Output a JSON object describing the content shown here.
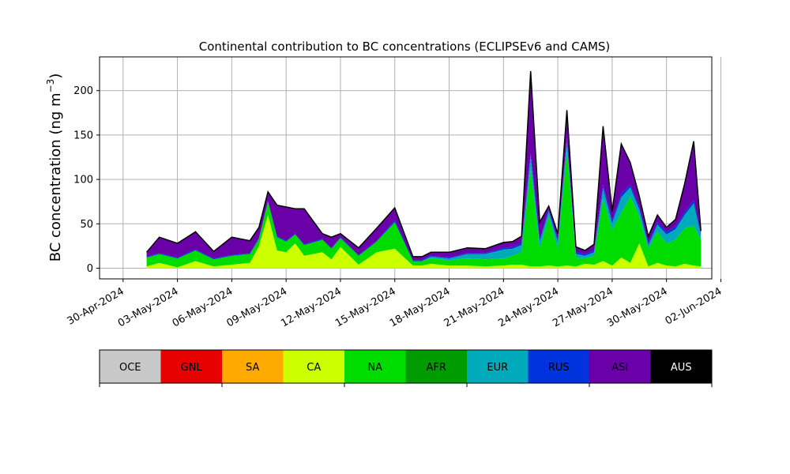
{
  "chart_data": {
    "type": "area",
    "stacked": true,
    "title": "Continental contribution to BC concentrations (ECLIPSEv6 and CAMS)",
    "ylabel": "BC concentration (ng m",
    "ylabel_unit_superscript": "−3",
    "ylabel_unit_close": ")",
    "xlabel": "",
    "ylim": [
      -12,
      238
    ],
    "xlim_days": [
      -1.3,
      32.5
    ],
    "grid": true,
    "yticks": [
      0,
      50,
      100,
      150,
      200
    ],
    "xticks": [
      "30-Apr-2024",
      "03-May-2024",
      "06-May-2024",
      "09-May-2024",
      "12-May-2024",
      "15-May-2024",
      "18-May-2024",
      "21-May-2024",
      "24-May-2024",
      "27-May-2024",
      "30-May-2024",
      "02-Jun-2024"
    ],
    "series_order": [
      "OCE",
      "GNL",
      "SA",
      "CA",
      "NA",
      "AFR",
      "EUR",
      "RUS",
      "ASI",
      "AUS"
    ],
    "colors": {
      "OCE": "#c8c8c8",
      "GNL": "#e60000",
      "SA": "#ffaa00",
      "CA": "#ccff00",
      "NA": "#00dc00",
      "AFR": "#009b00",
      "EUR": "#00aabb",
      "RUS": "#0033dd",
      "ASI": "#6a00a8",
      "AUS": "#000000"
    },
    "legend": [
      {
        "name": "OCE",
        "color": "#c8c8c8",
        "text_color": "#000000"
      },
      {
        "name": "GNL",
        "color": "#e60000",
        "text_color": "#000000"
      },
      {
        "name": "SA",
        "color": "#ffaa00",
        "text_color": "#000000"
      },
      {
        "name": "CA",
        "color": "#ccff00",
        "text_color": "#000000"
      },
      {
        "name": "NA",
        "color": "#00dc00",
        "text_color": "#000000"
      },
      {
        "name": "AFR",
        "color": "#009b00",
        "text_color": "#000000"
      },
      {
        "name": "EUR",
        "color": "#00aabb",
        "text_color": "#000000"
      },
      {
        "name": "RUS",
        "color": "#0033dd",
        "text_color": "#000000"
      },
      {
        "name": "ASI",
        "color": "#6a00a8",
        "text_color": "#000000"
      },
      {
        "name": "AUS",
        "color": "#000000",
        "text_color": "#ffffff"
      }
    ],
    "series": [
      {
        "name": "CA",
        "x": [
          1.3,
          2,
          3,
          4,
          5,
          6,
          7,
          7.5,
          8,
          8.5,
          9,
          9.5,
          10,
          11,
          11.5,
          12,
          13,
          14,
          15,
          16,
          16.5,
          17,
          18,
          19,
          20,
          21,
          21.5,
          22,
          22.5,
          23,
          23.5,
          24,
          24.5,
          25,
          25.5,
          26,
          26.5,
          27,
          27.5,
          28,
          28.5,
          29,
          29.5,
          30,
          30.5,
          31,
          31.5,
          31.9
        ],
        "values": [
          2,
          6,
          1,
          8,
          2,
          4,
          6,
          25,
          60,
          20,
          18,
          28,
          14,
          18,
          10,
          24,
          4,
          18,
          22,
          3,
          3,
          5,
          3,
          3,
          2,
          3,
          4,
          4,
          2,
          2,
          3,
          2,
          3,
          2,
          5,
          4,
          8,
          3,
          12,
          6,
          28,
          2,
          6,
          3,
          2,
          5,
          3,
          2
        ]
      },
      {
        "name": "NA",
        "x": [
          1.3,
          2,
          3,
          4,
          5,
          6,
          7,
          7.5,
          8,
          8.5,
          9,
          9.5,
          10,
          11,
          11.5,
          12,
          13,
          14,
          15,
          16,
          16.5,
          17,
          18,
          19,
          20,
          21,
          21.5,
          22,
          22.5,
          23,
          23.5,
          24,
          24.5,
          25,
          25.5,
          26,
          26.5,
          27,
          27.5,
          28,
          28.5,
          29,
          29.5,
          30,
          30.5,
          31,
          31.5,
          31.9
        ],
        "values": [
          10,
          10,
          10,
          12,
          8,
          10,
          10,
          8,
          15,
          15,
          12,
          10,
          12,
          14,
          12,
          10,
          10,
          12,
          30,
          5,
          5,
          6,
          6,
          8,
          8,
          8,
          10,
          14,
          110,
          20,
          55,
          20,
          130,
          10,
          6,
          10,
          70,
          40,
          50,
          75,
          30,
          20,
          35,
          25,
          30,
          40,
          45,
          30
        ]
      },
      {
        "name": "EUR",
        "x": [
          1.3,
          2,
          3,
          4,
          5,
          6,
          7,
          7.5,
          8,
          8.5,
          9,
          9.5,
          10,
          11,
          11.5,
          12,
          13,
          14,
          15,
          16,
          16.5,
          17,
          18,
          19,
          20,
          21,
          21.5,
          22,
          22.5,
          23,
          23.5,
          24,
          24.5,
          25,
          25.5,
          26,
          26.5,
          27,
          27.5,
          28,
          28.5,
          29,
          29.5,
          30,
          30.5,
          31,
          31.5,
          31.9
        ],
        "values": [
          0,
          0,
          0,
          0,
          0,
          0,
          0,
          0,
          0,
          0,
          0,
          0,
          0,
          0,
          0,
          0,
          0,
          0,
          0,
          0,
          0,
          2,
          2,
          5,
          6,
          10,
          8,
          8,
          14,
          8,
          6,
          8,
          10,
          4,
          3,
          4,
          12,
          8,
          18,
          10,
          8,
          4,
          8,
          10,
          12,
          15,
          25,
          5
        ]
      },
      {
        "name": "RUS",
        "x": [
          1.3,
          2,
          3,
          4,
          5,
          6,
          7,
          7.5,
          8,
          8.5,
          9,
          9.5,
          10,
          11,
          11.5,
          12,
          13,
          14,
          15,
          16,
          16.5,
          17,
          18,
          19,
          20,
          21,
          21.5,
          22,
          22.5,
          23,
          23.5,
          24,
          24.5,
          25,
          25.5,
          26,
          26.5,
          27,
          27.5,
          28,
          28.5,
          29,
          29.5,
          30,
          30.5,
          31,
          31.5,
          31.9
        ],
        "values": [
          1,
          1,
          1,
          1,
          1,
          1,
          1,
          1,
          1,
          1,
          1,
          1,
          1,
          1,
          1,
          1,
          1,
          1,
          2,
          1,
          1,
          1,
          1,
          1,
          1,
          2,
          2,
          2,
          4,
          2,
          2,
          2,
          4,
          2,
          2,
          2,
          4,
          3,
          4,
          3,
          3,
          2,
          3,
          3,
          3,
          3,
          4,
          2
        ]
      },
      {
        "name": "ASI",
        "x": [
          1.3,
          2,
          3,
          4,
          5,
          6,
          7,
          7.5,
          8,
          8.5,
          9,
          9.5,
          10,
          11,
          11.5,
          12,
          13,
          14,
          15,
          16,
          16.5,
          17,
          18,
          19,
          20,
          21,
          21.5,
          22,
          22.5,
          23,
          23.5,
          24,
          24.5,
          25,
          25.5,
          26,
          26.5,
          27,
          27.5,
          28,
          28.5,
          29,
          29.5,
          30,
          30.5,
          31,
          31.5,
          31.9
        ],
        "values": [
          5,
          18,
          16,
          20,
          8,
          20,
          14,
          12,
          10,
          35,
          38,
          28,
          40,
          6,
          12,
          4,
          8,
          14,
          14,
          4,
          4,
          4,
          6,
          6,
          5,
          6,
          6,
          8,
          90,
          20,
          4,
          7,
          30,
          6,
          4,
          7,
          65,
          10,
          55,
          25,
          12,
          8,
          8,
          5,
          8,
          32,
          65,
          3
        ]
      },
      {
        "name": "AUS",
        "x": [
          1.3,
          2,
          3,
          4,
          5,
          6,
          7,
          7.5,
          8,
          8.5,
          9,
          9.5,
          10,
          11,
          11.5,
          12,
          13,
          14,
          15,
          16,
          16.5,
          17,
          18,
          19,
          20,
          21,
          21.5,
          22,
          22.5,
          23,
          23.5,
          24,
          24.5,
          25,
          25.5,
          26,
          26.5,
          27,
          27.5,
          28,
          28.5,
          29,
          29.5,
          30,
          30.5,
          31,
          31.5,
          31.9
        ],
        "values": [
          0,
          0,
          0,
          0,
          0,
          0,
          0,
          0,
          0,
          0,
          0,
          0,
          0,
          0,
          0,
          0,
          0,
          0,
          0,
          0,
          0,
          0,
          0,
          0,
          0,
          0,
          0,
          0,
          2,
          0,
          0,
          0,
          1,
          0,
          0,
          0,
          1,
          0,
          1,
          0,
          0,
          0,
          0,
          0,
          0,
          0,
          1,
          0
        ]
      }
    ]
  }
}
